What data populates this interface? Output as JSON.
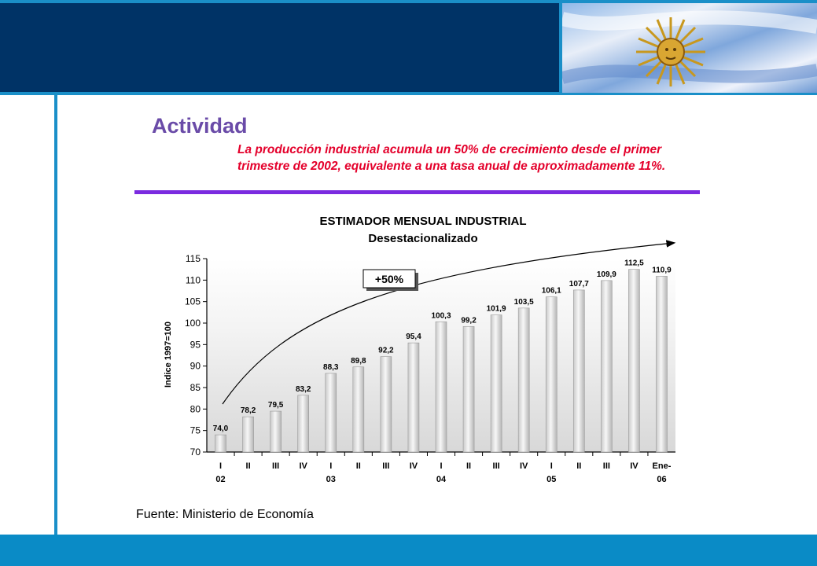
{
  "slide": {
    "heading": "Actividad",
    "subtitle": "La producción industrial acumula un 50% de crecimiento desde el primer trimestre de 2002, equivalente a una tasa anual de aproximadamente 11%.",
    "source": "Fuente: Ministerio de Economía"
  },
  "colors": {
    "header": "#003366",
    "accent": "#1a8fc8",
    "heading": "#6a4ba8",
    "subtitle": "#e4002b",
    "rule": "#7b2be0"
  },
  "chart_data": {
    "type": "bar",
    "title": "ESTIMADOR MENSUAL INDUSTRIAL",
    "subtitle": "Desestacionalizado",
    "ylabel": "Indice 1997=100",
    "xlabel": "",
    "ylim": [
      70,
      115
    ],
    "yticks": [
      70,
      75,
      80,
      85,
      90,
      95,
      100,
      105,
      110,
      115
    ],
    "categories": [
      "I",
      "II",
      "III",
      "IV",
      "I",
      "II",
      "III",
      "IV",
      "I",
      "II",
      "III",
      "IV",
      "I",
      "II",
      "III",
      "IV",
      "Ene-"
    ],
    "year_labels": [
      "02",
      "",
      "",
      "",
      "03",
      "",
      "",
      "",
      "04",
      "",
      "",
      "",
      "05",
      "",
      "",
      "",
      "06"
    ],
    "values": [
      74.0,
      78.2,
      79.5,
      83.2,
      88.3,
      89.8,
      92.2,
      95.4,
      100.3,
      99.2,
      101.9,
      103.5,
      106.1,
      107.7,
      109.9,
      112.5,
      110.9
    ],
    "value_labels": [
      "74,0",
      "78,2",
      "79,5",
      "83,2",
      "88,3",
      "89,8",
      "92,2",
      "95,4",
      "100,3",
      "99,2",
      "101,9",
      "103,5",
      "106,1",
      "107,7",
      "109,9",
      "112,5",
      "110,9"
    ],
    "annotation": "+50%",
    "grid": false
  }
}
